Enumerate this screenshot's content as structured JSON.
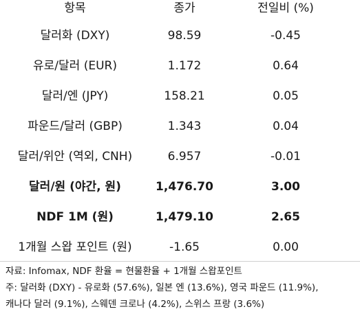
{
  "header": {
    "item": "항목",
    "close": "종가",
    "change": "전일비 (%)"
  },
  "rows": [
    {
      "item": "달러화 (DXY)",
      "close": "98.59",
      "change": "-0.45",
      "bold": false
    },
    {
      "item": "유로/달러 (EUR)",
      "close": "1.172",
      "change": "0.64",
      "bold": false
    },
    {
      "item": "달러/엔 (JPY)",
      "close": "158.21",
      "change": "0.05",
      "bold": false
    },
    {
      "item": "파운드/달러 (GBP)",
      "close": "1.343",
      "change": "0.04",
      "bold": false
    },
    {
      "item": "달러/위안 (역외, CNH)",
      "close": "6.957",
      "change": "-0.01",
      "bold": false
    },
    {
      "item": "달러/원 (야간, 원)",
      "close": "1,476.70",
      "change": "3.00",
      "bold": true
    },
    {
      "item": "NDF 1M (원)",
      "close": "1,479.10",
      "change": "2.65",
      "bold": true
    },
    {
      "item": "1개월 스왑 포인트 (원)",
      "close": "-1.65",
      "change": "0.00",
      "bold": false
    }
  ],
  "footer": {
    "source": "자료: Infomax, NDF 환율 = 현물환율 + 1개월 스왑포인트",
    "note_line1": "주: 달러화 (DXY) - 유로화 (57.6%), 일본 엔 (13.6%), 영국 파운드 (11.9%),",
    "note_line2": "캐나다 달러 (9.1%), 스웨덴 크로나 (4.2%), 스위스 프랑 (3.6%)"
  }
}
